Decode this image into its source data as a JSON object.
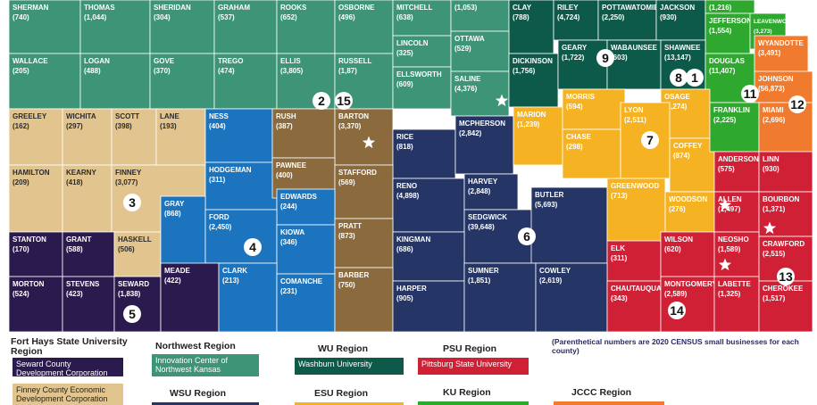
{
  "counties": [
    {
      "name": "SHERMAN",
      "count": "(740)"
    },
    {
      "name": "THOMAS",
      "count": "(1,044)"
    },
    {
      "name": "SHERIDAN",
      "count": "(304)"
    },
    {
      "name": "GRAHAM",
      "count": "(537)"
    },
    {
      "name": "ROOKS",
      "count": "(652)"
    },
    {
      "name": "OSBORNE",
      "count": "(496)"
    },
    {
      "name": "MITCHELL",
      "count": "(638)"
    },
    {
      "name": null,
      "count": "(1,053)"
    },
    {
      "name": "CLAY",
      "count": "(788)"
    },
    {
      "name": "RILEY",
      "count": "(4,724)"
    },
    {
      "name": "POTTAWATOMIE",
      "count": "(2,250)"
    },
    {
      "name": "JACKSON",
      "count": "(930)"
    },
    {
      "name": null,
      "count": "(1,216)"
    },
    {
      "name": "JEFFERSON",
      "count": "(1,554)"
    },
    {
      "name": "LEAVENWORTH",
      "count": "(3,273)"
    },
    {
      "name": "WALLACE",
      "count": "(205)"
    },
    {
      "name": "LOGAN",
      "count": "(488)"
    },
    {
      "name": "GOVE",
      "count": "(370)"
    },
    {
      "name": "TREGO",
      "count": "(474)"
    },
    {
      "name": "ELLIS",
      "count": "(3,805)"
    },
    {
      "name": "RUSSELL",
      "count": "(1,87)"
    },
    {
      "name": "LINCOLN",
      "count": "(325)"
    },
    {
      "name": "ELLSWORTH",
      "count": "(609)"
    },
    {
      "name": "OTTAWA",
      "count": "(529)"
    },
    {
      "name": "SALINE",
      "count": "(4,376)"
    },
    {
      "name": "DICKINSON",
      "count": "(1,756)"
    },
    {
      "name": "GEARY",
      "count": "(1,722)"
    },
    {
      "name": "WABAUNSEE",
      "count": "(603)"
    },
    {
      "name": "SHAWNEE",
      "count": "(13,147)"
    },
    {
      "name": "DOUGLAS",
      "count": "(11,407)"
    },
    {
      "name": "WYANDOTTE",
      "count": "(3,491)"
    },
    {
      "name": "JOHNSON",
      "count": "(56,873)"
    },
    {
      "name": "OSAGE",
      "count": "(1,274)"
    },
    {
      "name": "GREELEY",
      "count": "(162)"
    },
    {
      "name": "WICHITA",
      "count": "(297)"
    },
    {
      "name": "SCOTT",
      "count": "(398)"
    },
    {
      "name": "LANE",
      "count": "(193)"
    },
    {
      "name": "NESS",
      "count": "(404)"
    },
    {
      "name": "RUSH",
      "count": "(387)"
    },
    {
      "name": "BARTON",
      "count": "(3,370)"
    },
    {
      "name": "RICE",
      "count": "(818)"
    },
    {
      "name": "MCPHERSON",
      "count": "(2,842)"
    },
    {
      "name": "MARION",
      "count": "(1,239)"
    },
    {
      "name": "MORRIS",
      "count": "(594)"
    },
    {
      "name": "CHASE",
      "count": "(298)"
    },
    {
      "name": "LYON",
      "count": "(2,511)"
    },
    {
      "name": "COFFEY",
      "count": "(874)"
    },
    {
      "name": "FRANKLIN",
      "count": "(2,225)"
    },
    {
      "name": "MIAMI",
      "count": "(2,696)"
    },
    {
      "name": "HAMILTON",
      "count": "(209)"
    },
    {
      "name": "KEARNY",
      "count": "(418)"
    },
    {
      "name": "FINNEY",
      "count": "(3,077)"
    },
    {
      "name": "HODGEMAN",
      "count": "(311)"
    },
    {
      "name": "PAWNEE",
      "count": "(400)"
    },
    {
      "name": "STAFFORD",
      "count": "(569)"
    },
    {
      "name": "EDWARDS",
      "count": "(244)"
    },
    {
      "name": "RENO",
      "count": "(4,898)"
    },
    {
      "name": "HARVEY",
      "count": "(2,848)"
    },
    {
      "name": "SEDGWICK",
      "count": "(39,648)"
    },
    {
      "name": "BUTLER",
      "count": "(5,693)"
    },
    {
      "name": "GREENWOOD",
      "count": "(713)"
    },
    {
      "name": "WOODSON",
      "count": "(276)"
    },
    {
      "name": "ANDERSON",
      "count": "(575)"
    },
    {
      "name": "LINN",
      "count": "(930)"
    },
    {
      "name": "ALLEN",
      "count": "(1,497)"
    },
    {
      "name": "BOURBON",
      "count": "(1,371)"
    },
    {
      "name": "STANTON",
      "count": "(170)"
    },
    {
      "name": "GRANT",
      "count": "(588)"
    },
    {
      "name": "HASKELL",
      "count": "(506)"
    },
    {
      "name": "GRAY",
      "count": "(868)"
    },
    {
      "name": "FORD",
      "count": "(2,450)"
    },
    {
      "name": "KIOWA",
      "count": "(346)"
    },
    {
      "name": "PRATT",
      "count": "(873)"
    },
    {
      "name": "KINGMAN",
      "count": "(686)"
    },
    {
      "name": "ELK",
      "count": "(311)"
    },
    {
      "name": "WILSON",
      "count": "(620)"
    },
    {
      "name": "NEOSHO",
      "count": "(1,589)"
    },
    {
      "name": "CRAWFORD",
      "count": "(2,515)"
    },
    {
      "name": "MORTON",
      "count": "(524)"
    },
    {
      "name": "STEVENS",
      "count": "(423)"
    },
    {
      "name": "SEWARD",
      "count": "(1,838)"
    },
    {
      "name": "MEADE",
      "count": "(422)"
    },
    {
      "name": "CLARK",
      "count": "(213)"
    },
    {
      "name": "COMANCHE",
      "count": "(231)"
    },
    {
      "name": "BARBER",
      "count": "(750)"
    },
    {
      "name": "HARPER",
      "count": "(905)"
    },
    {
      "name": "SUMNER",
      "count": "(1,851)"
    },
    {
      "name": "COWLEY",
      "count": "(2,619)"
    },
    {
      "name": "CHAUTAUQUA",
      "count": "(343)"
    },
    {
      "name": "MONTGOMERY",
      "count": "(2,589)"
    },
    {
      "name": "LABETTE",
      "count": "(1,325)"
    },
    {
      "name": "CHEROKEE",
      "count": "(1,517)"
    }
  ],
  "region_markers": [
    "9",
    "8",
    "1",
    "2",
    "15",
    "3",
    "4",
    "7",
    "11",
    "12",
    "6",
    "13",
    "5",
    "14"
  ],
  "legend": [
    {
      "title": "Fort Hays State University Region",
      "labels": [
        "Seward County Development Corporation",
        "Finney County Economic Development Corporation"
      ]
    },
    {
      "title": "Northwest Region",
      "labels": [
        "Innovation Center of Northwest Kansas"
      ]
    },
    {
      "title": "WU Region",
      "labels": [
        "Washburn University"
      ]
    },
    {
      "title": "PSU Region",
      "labels": [
        "Pittsburg State University"
      ]
    },
    {
      "title": "WSU Region"
    },
    {
      "title": "ESU Region"
    },
    {
      "title": "KU Region"
    },
    {
      "title": "JCCC Region"
    }
  ],
  "note": "(Parenthetical numbers are 2020 CENSUS small businesses for each county)"
}
